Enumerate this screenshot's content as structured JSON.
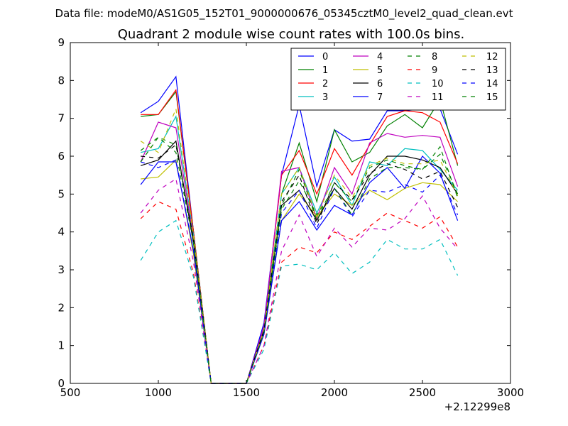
{
  "figure": {
    "suptitle": "Data file: modeM0/AS1G05_152T01_9000000676_05345cztM0_level2_quad_clean.evt",
    "offset_label": "+2.12299e8"
  },
  "chart_data": {
    "type": "line",
    "title": "Quadrant 2 module wise count rates with 100.0s bins.",
    "xlabel": "",
    "ylabel": "",
    "xlim": [
      500,
      3000
    ],
    "ylim": [
      0,
      9
    ],
    "x_ticks": [
      "500",
      "1000",
      "1500",
      "2000",
      "2500",
      "3000"
    ],
    "y_ticks": [
      "0",
      "1",
      "2",
      "3",
      "4",
      "5",
      "6",
      "7",
      "8",
      "9"
    ],
    "legend_position": "upper right",
    "legend_columns": 4,
    "x": [
      900,
      1000,
      1100,
      1200,
      1300,
      1400,
      1500,
      1600,
      1700,
      1800,
      1900,
      2000,
      2100,
      2200,
      2300,
      2400,
      2500,
      2600,
      2700
    ],
    "series": [
      {
        "name": "0",
        "color": "#0000ff",
        "dash": "solid",
        "values": [
          7.15,
          7.45,
          8.1,
          4.0,
          0,
          0,
          0,
          1.6,
          5.5,
          7.35,
          5.2,
          6.7,
          6.4,
          6.45,
          7.2,
          7.2,
          7.25,
          7.25,
          6.05
        ]
      },
      {
        "name": "1",
        "color": "#008000",
        "dash": "solid",
        "values": [
          7.05,
          7.1,
          7.7,
          4.0,
          0,
          0,
          0,
          1.5,
          5.0,
          6.35,
          4.8,
          6.7,
          5.85,
          6.1,
          6.8,
          7.1,
          6.75,
          7.5,
          5.75
        ]
      },
      {
        "name": "2",
        "color": "#ff0000",
        "dash": "solid",
        "values": [
          7.1,
          7.1,
          7.75,
          4.0,
          0,
          0,
          0,
          1.5,
          5.5,
          6.15,
          5.0,
          6.2,
          5.5,
          6.3,
          7.05,
          7.2,
          7.15,
          6.9,
          5.8
        ]
      },
      {
        "name": "3",
        "color": "#00bfbf",
        "dash": "solid",
        "values": [
          6.1,
          6.2,
          7.05,
          3.9,
          0,
          0,
          0,
          1.4,
          5.0,
          5.7,
          4.5,
          5.45,
          4.7,
          5.85,
          5.75,
          6.2,
          6.15,
          5.65,
          5.1
        ]
      },
      {
        "name": "4",
        "color": "#bf00bf",
        "dash": "solid",
        "values": [
          5.85,
          6.9,
          6.75,
          3.8,
          0,
          0,
          0,
          1.5,
          5.6,
          5.7,
          4.35,
          5.7,
          5.0,
          6.35,
          6.6,
          6.5,
          6.55,
          6.5,
          5.2
        ]
      },
      {
        "name": "5",
        "color": "#bfbf00",
        "dash": "solid",
        "values": [
          5.4,
          5.45,
          5.9,
          3.4,
          0,
          0,
          0,
          1.3,
          4.3,
          5.0,
          4.4,
          5.0,
          4.7,
          5.1,
          4.85,
          5.15,
          5.3,
          5.25,
          4.8
        ]
      },
      {
        "name": "6",
        "color": "#000000",
        "dash": "solid",
        "values": [
          5.75,
          5.9,
          6.4,
          3.7,
          0,
          0,
          0,
          1.4,
          4.7,
          5.1,
          4.3,
          5.15,
          4.6,
          5.5,
          6.0,
          6.0,
          5.9,
          5.7,
          5.0
        ]
      },
      {
        "name": "7",
        "color": "#0000ff",
        "dash": "solid",
        "values": [
          5.25,
          5.85,
          5.85,
          3.5,
          0,
          0,
          0,
          1.3,
          4.3,
          4.8,
          4.05,
          4.7,
          4.45,
          5.3,
          5.7,
          5.15,
          6.0,
          5.55,
          4.3
        ]
      },
      {
        "name": "8",
        "color": "#008000",
        "dash": "dashed",
        "values": [
          6.15,
          6.5,
          6.3,
          3.8,
          0,
          0,
          0,
          1.35,
          4.7,
          5.65,
          4.3,
          5.3,
          4.8,
          5.7,
          5.9,
          5.75,
          5.65,
          6.05,
          5.0
        ]
      },
      {
        "name": "9",
        "color": "#ff0000",
        "dash": "dashed",
        "values": [
          4.35,
          4.8,
          4.6,
          2.9,
          0,
          0,
          0,
          1.0,
          3.2,
          3.6,
          3.45,
          4.0,
          3.8,
          4.15,
          4.5,
          4.3,
          4.1,
          4.4,
          3.6
        ]
      },
      {
        "name": "10",
        "color": "#00bfbf",
        "dash": "dashed",
        "values": [
          3.25,
          4.0,
          4.3,
          2.8,
          0,
          0,
          0,
          0.9,
          3.1,
          3.15,
          3.0,
          3.45,
          2.9,
          3.2,
          3.8,
          3.55,
          3.55,
          3.8,
          2.85
        ]
      },
      {
        "name": "11",
        "color": "#bf00bf",
        "dash": "dashed",
        "values": [
          4.5,
          5.1,
          5.4,
          3.2,
          0,
          0,
          0,
          1.0,
          3.5,
          4.45,
          3.35,
          4.1,
          3.6,
          4.1,
          4.05,
          4.35,
          4.95,
          4.1,
          3.55
        ]
      },
      {
        "name": "12",
        "color": "#bfbf00",
        "dash": "dashed",
        "values": [
          6.4,
          6.1,
          7.25,
          3.9,
          0,
          0,
          0,
          1.4,
          5.0,
          5.7,
          4.4,
          5.5,
          4.9,
          5.75,
          5.95,
          5.8,
          5.8,
          5.9,
          4.95
        ]
      },
      {
        "name": "13",
        "color": "#000000",
        "dash": "dashed",
        "values": [
          6.0,
          5.95,
          6.3,
          3.8,
          0,
          0,
          0,
          1.4,
          4.8,
          5.5,
          4.2,
          5.3,
          4.85,
          5.55,
          5.8,
          5.65,
          5.4,
          5.6,
          4.65
        ]
      },
      {
        "name": "14",
        "color": "#0000ff",
        "dash": "dashed",
        "values": [
          5.85,
          5.7,
          5.9,
          3.5,
          0,
          0,
          0,
          1.3,
          4.5,
          5.1,
          4.1,
          5.15,
          4.4,
          5.1,
          5.05,
          5.25,
          5.05,
          5.5,
          4.45
        ]
      },
      {
        "name": "15",
        "color": "#008000",
        "dash": "dashed",
        "values": [
          5.85,
          6.5,
          6.1,
          3.7,
          0,
          0,
          0,
          1.35,
          4.6,
          5.35,
          4.45,
          5.15,
          4.45,
          5.4,
          5.7,
          5.7,
          5.65,
          6.25,
          4.9
        ]
      }
    ]
  }
}
